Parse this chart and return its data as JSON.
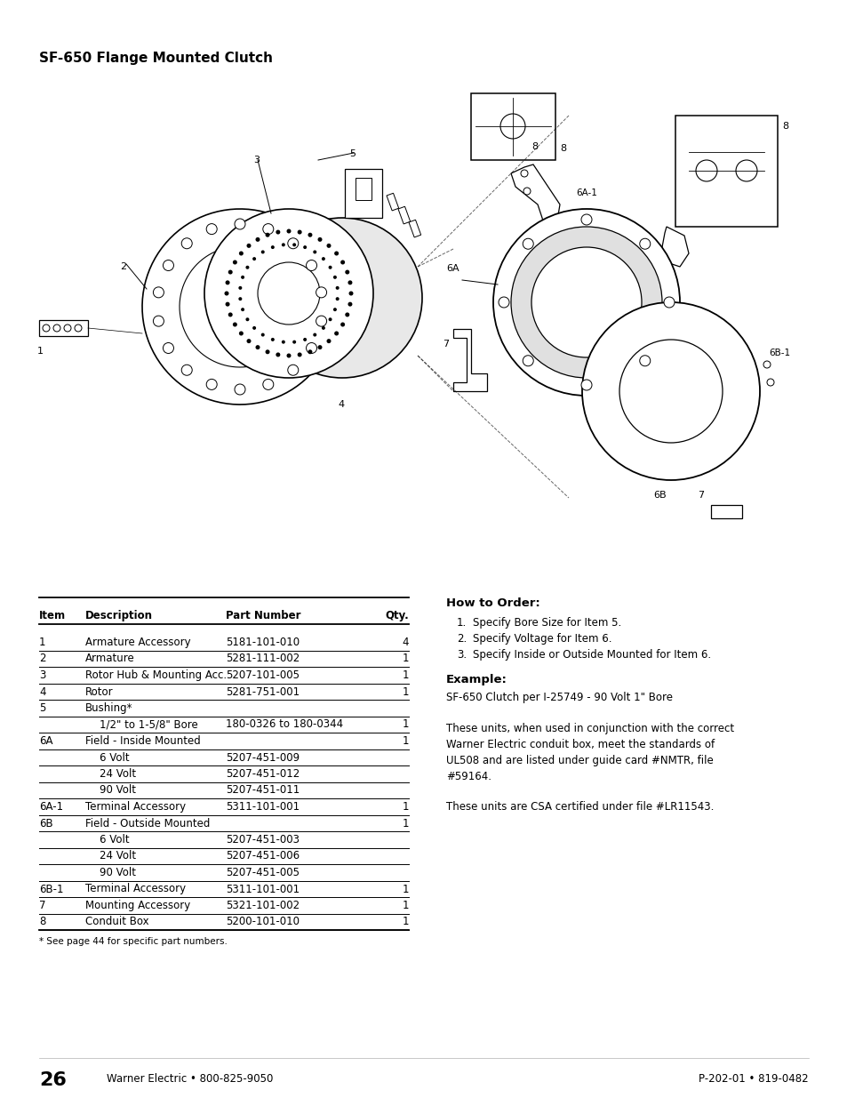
{
  "title": "SF-650 Flange Mounted Clutch",
  "page_number": "26",
  "footer_left": "Warner Electric • 800-825-9050",
  "footer_right": "P-202-01 • 819-0482",
  "table_headers": [
    "Item",
    "Description",
    "Part Number",
    "Qty."
  ],
  "table_rows": [
    [
      "1",
      "Armature Accessory",
      "5181-101-010",
      "4"
    ],
    [
      "2",
      "Armature",
      "5281-111-002",
      "1"
    ],
    [
      "3",
      "Rotor Hub & Mounting Acc.",
      "5207-101-005",
      "1"
    ],
    [
      "4",
      "Rotor",
      "5281-751-001",
      "1"
    ],
    [
      "5",
      "Bushing*",
      "",
      ""
    ],
    [
      "",
      "1/2\" to 1-5/8\" Bore",
      "180-0326 to 180-0344",
      "1"
    ],
    [
      "6A",
      "Field - Inside Mounted",
      "",
      "1"
    ],
    [
      "",
      "6 Volt",
      "5207-451-009",
      ""
    ],
    [
      "",
      "24 Volt",
      "5207-451-012",
      ""
    ],
    [
      "",
      "90 Volt",
      "5207-451-011",
      ""
    ],
    [
      "6A-1",
      "Terminal Accessory",
      "5311-101-001",
      "1"
    ],
    [
      "6B",
      "Field - Outside Mounted",
      "",
      "1"
    ],
    [
      "",
      "6 Volt",
      "5207-451-003",
      ""
    ],
    [
      "",
      "24 Volt",
      "5207-451-006",
      ""
    ],
    [
      "",
      "90 Volt",
      "5207-451-005",
      ""
    ],
    [
      "6B-1",
      "Terminal Accessory",
      "5311-101-001",
      "1"
    ],
    [
      "7",
      "Mounting Accessory",
      "5321-101-002",
      "1"
    ],
    [
      "8",
      "Conduit Box",
      "5200-101-010",
      "1"
    ]
  ],
  "footnote": "* See page 44 for specific part numbers.",
  "how_to_order_title": "How to Order:",
  "how_to_order_steps": [
    "Specify Bore Size for Item 5.",
    "Specify Voltage for Item 6.",
    "Specify Inside or Outside Mounted for Item 6."
  ],
  "example_title": "Example:",
  "example_text": "SF-650 Clutch per I-25749 - 90 Volt 1\" Bore",
  "paragraph1": "These units, when used in conjunction with the correct\nWarner Electric conduit box, meet the standards of\nUL508 and are listed under guide card #NMTR, file\n#59164.",
  "paragraph2": "These units are CSA certified under file #LR11543.",
  "bg_color": "#ffffff",
  "text_color": "#000000"
}
